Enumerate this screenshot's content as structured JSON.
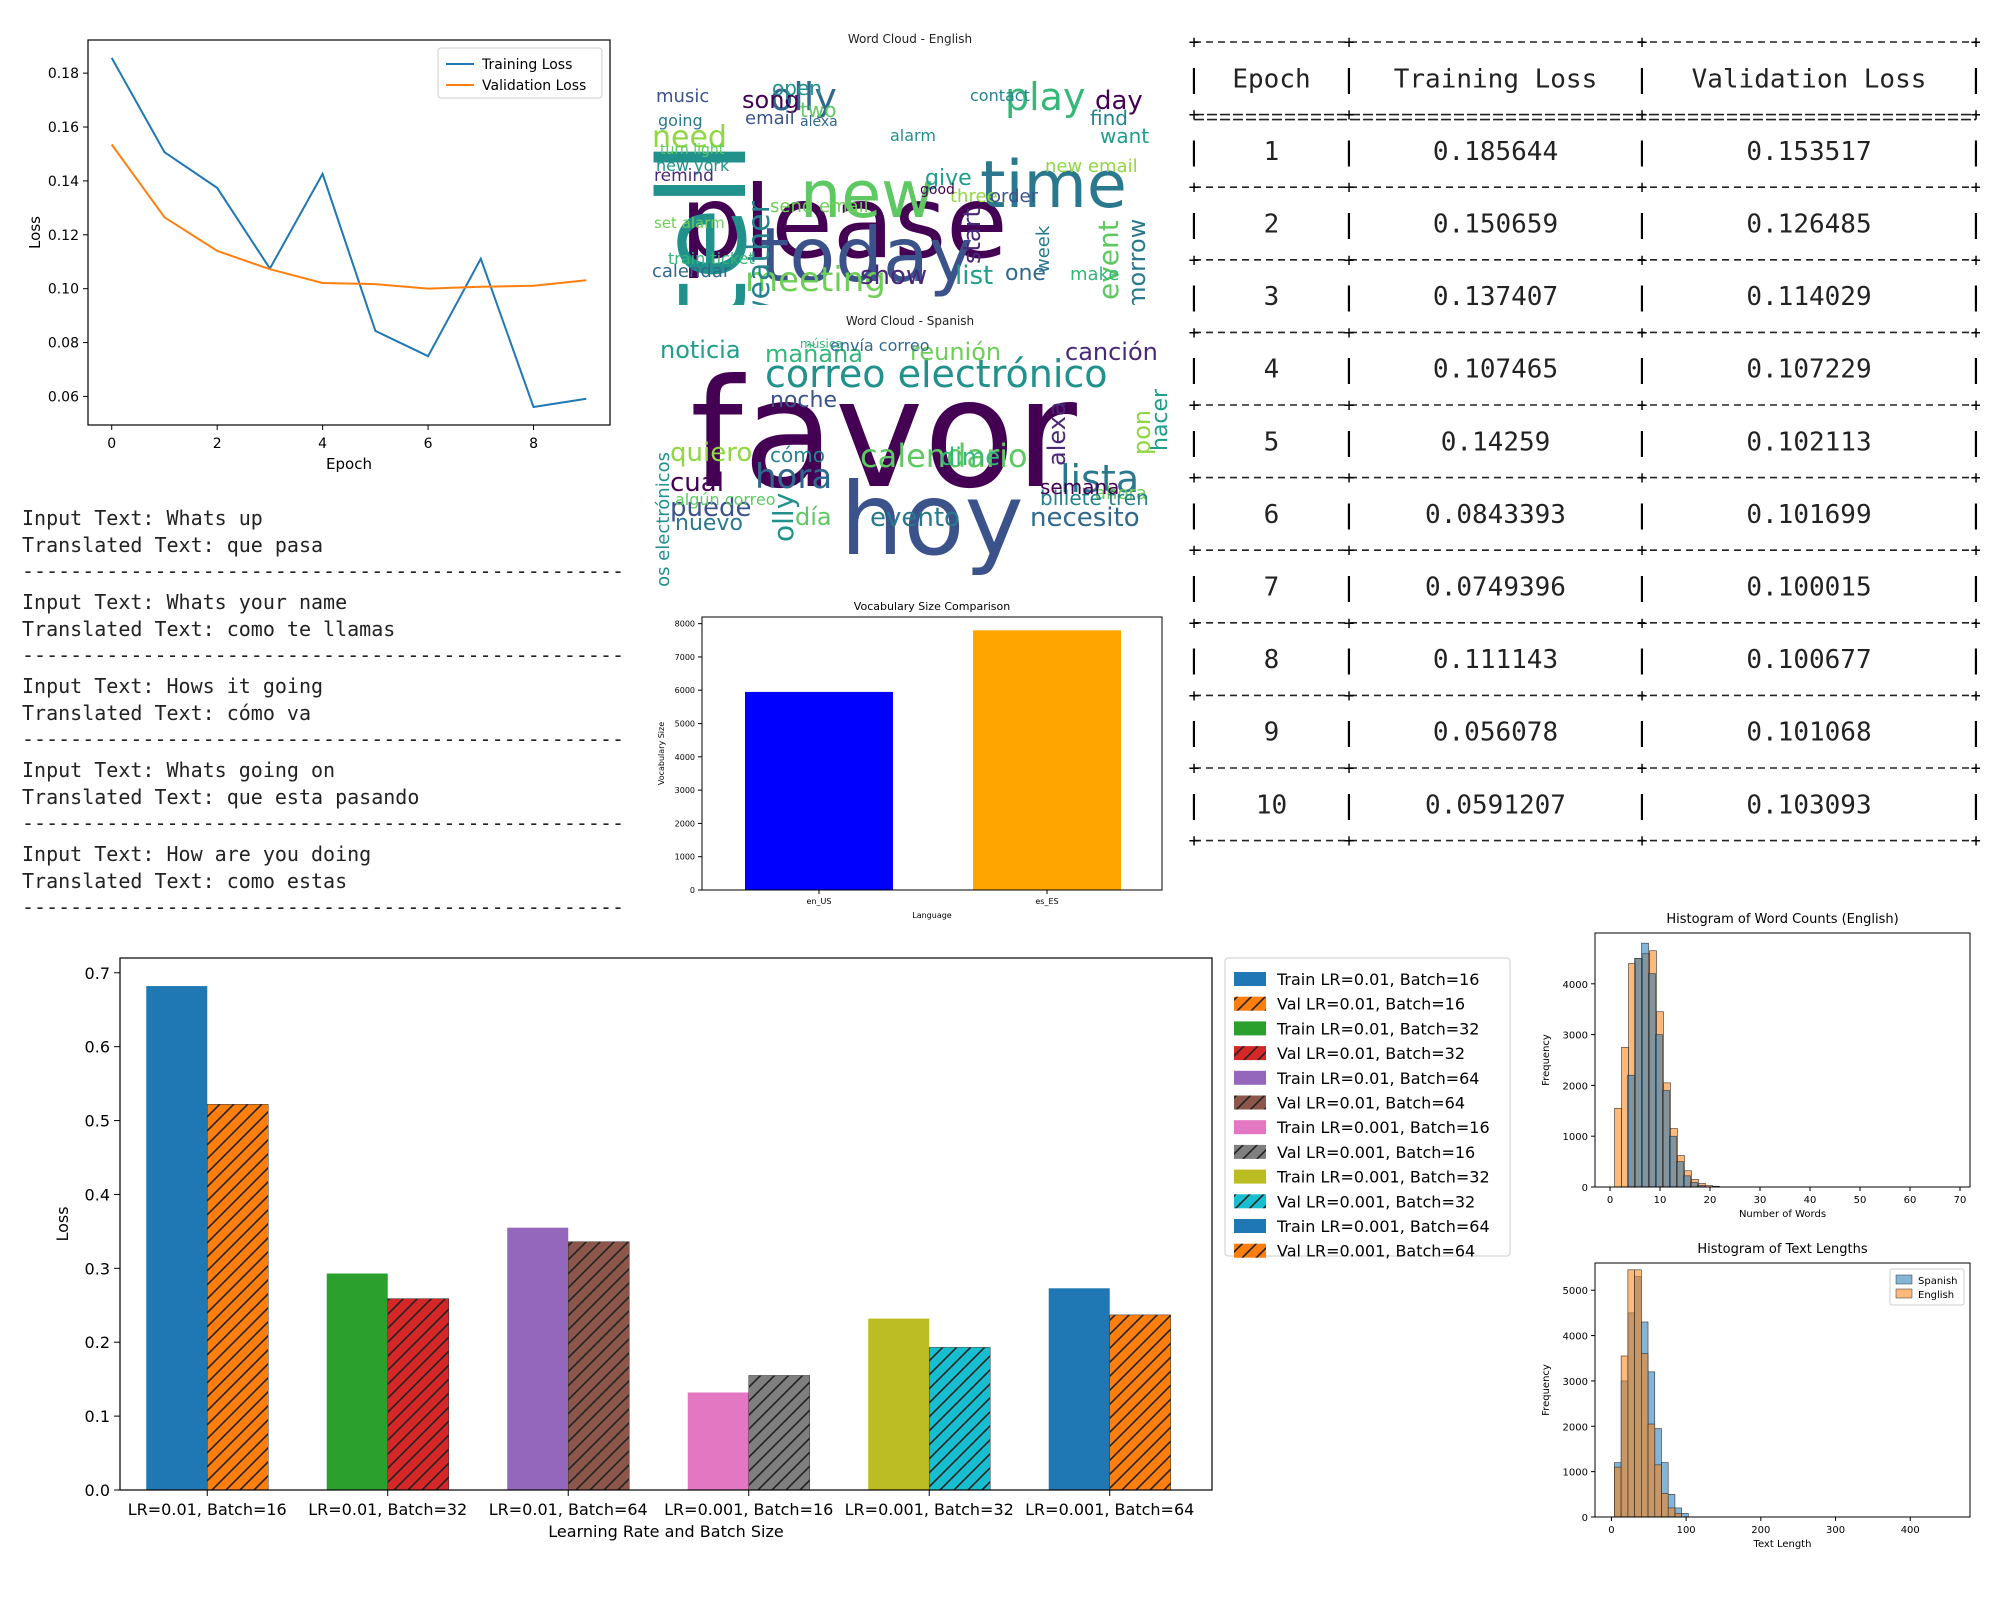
{
  "loss_chart": {
    "xlabel": "Epoch",
    "ylabel": "Loss",
    "legend": [
      "Training Loss",
      "Validation Loss"
    ],
    "x_ticks": [
      "0",
      "2",
      "4",
      "6",
      "8"
    ],
    "y_ticks": [
      "0.06",
      "0.08",
      "0.10",
      "0.12",
      "0.14",
      "0.16",
      "0.18"
    ]
  },
  "samples": [
    {
      "input": "Input Text: Whats up",
      "translated": "Translated Text: que pasa"
    },
    {
      "input": "Input Text: Whats your name",
      "translated": "Translated Text: como te llamas"
    },
    {
      "input": "Input Text: Hows it going",
      "translated": "Translated Text: cómo va"
    },
    {
      "input": "Input Text: Whats going on",
      "translated": "Translated Text: que esta pasando"
    },
    {
      "input": "Input Text: How are you doing",
      "translated": "Translated Text: como estas"
    }
  ],
  "separator": "------------------------------------------------------------",
  "wordcloud_en": {
    "title": "Word Cloud - English",
    "words": [
      "please",
      "today",
      "tell",
      "new",
      "time",
      "olly",
      "play",
      "meeting",
      "show",
      "list",
      "need",
      "weather",
      "song",
      "email",
      "alarm",
      "event",
      "tomorrow",
      "calendar",
      "train ticket",
      "set alarm",
      "remind",
      "want",
      "new email",
      "find",
      "day",
      "music",
      "open",
      "two",
      "week",
      "one",
      "make",
      "send email",
      "start",
      "give",
      "three",
      "contact",
      "good",
      "order",
      "new york",
      "turn light",
      "going",
      "alexa"
    ]
  },
  "wordcloud_es": {
    "title": "Word Cloud - Spanish",
    "words": [
      "favor",
      "hoy",
      "correo electrónico",
      "calendario",
      "lista",
      "hora",
      "mañana",
      "reunión",
      "canción",
      "noticia",
      "quiero",
      "cómo",
      "cuál",
      "puede",
      "olly",
      "día",
      "evento",
      "necesito",
      "dime",
      "ahora",
      "alexa",
      "hacer",
      "pon",
      "billete tren",
      "semana",
      "noche",
      "correos electrónicos",
      "algún correo",
      "nuevo",
      "envía correo",
      "música"
    ]
  },
  "vocab_chart": {
    "title": "Vocabulary Size Comparison",
    "xlabel": "Language",
    "ylabel": "Vocabulary Size",
    "y_ticks": [
      "0",
      "1000",
      "2000",
      "3000",
      "4000",
      "5000",
      "6000",
      "7000",
      "8000"
    ]
  },
  "loss_table": {
    "headers": [
      "Epoch",
      "Training Loss",
      "Validation Loss"
    ],
    "rows": [
      [
        "1",
        "0.185644",
        "0.153517"
      ],
      [
        "2",
        "0.150659",
        "0.126485"
      ],
      [
        "3",
        "0.137407",
        "0.114029"
      ],
      [
        "4",
        "0.107465",
        "0.107229"
      ],
      [
        "5",
        "0.14259",
        "0.102113"
      ],
      [
        "6",
        "0.0843393",
        "0.101699"
      ],
      [
        "7",
        "0.0749396",
        "0.100015"
      ],
      [
        "8",
        "0.111143",
        "0.100677"
      ],
      [
        "9",
        "0.056078",
        "0.101068"
      ],
      [
        "10",
        "0.0591207",
        "0.103093"
      ]
    ]
  },
  "grid_chart": {
    "xlabel": "Learning Rate and Batch Size",
    "ylabel": "Loss",
    "y_ticks": [
      "0.0",
      "0.1",
      "0.2",
      "0.3",
      "0.4",
      "0.5",
      "0.6",
      "0.7"
    ],
    "categories": [
      "LR=0.01, Batch=16",
      "LR=0.01, Batch=32",
      "LR=0.01, Batch=64",
      "LR=0.001, Batch=16",
      "LR=0.001, Batch=32",
      "LR=0.001, Batch=64"
    ],
    "legend": [
      "Train LR=0.01, Batch=16",
      "Val LR=0.01, Batch=16",
      "Train LR=0.01, Batch=32",
      "Val LR=0.01, Batch=32",
      "Train LR=0.01, Batch=64",
      "Val LR=0.01, Batch=64",
      "Train LR=0.001, Batch=16",
      "Val LR=0.001, Batch=16",
      "Train LR=0.001, Batch=32",
      "Val LR=0.001, Batch=32",
      "Train LR=0.001, Batch=64",
      "Val LR=0.001, Batch=64"
    ]
  },
  "hist_words": {
    "title": "Histogram of Word Counts (English)",
    "xlabel": "Number of Words",
    "ylabel": "Frequency",
    "x_ticks": [
      "0",
      "10",
      "20",
      "30",
      "40",
      "50",
      "60",
      "70"
    ],
    "y_ticks": [
      "0",
      "1000",
      "2000",
      "3000",
      "4000"
    ]
  },
  "hist_len": {
    "title": "Histogram of Text Lengths",
    "xlabel": "Text Length",
    "ylabel": "Frequency",
    "legend": [
      "Spanish",
      "English"
    ],
    "x_ticks": [
      "0",
      "100",
      "200",
      "300",
      "400"
    ],
    "y_ticks": [
      "0",
      "1000",
      "2000",
      "3000",
      "4000",
      "5000"
    ]
  },
  "chart_data": [
    {
      "type": "line",
      "x": [
        0,
        1,
        2,
        3,
        4,
        5,
        6,
        7,
        8,
        9
      ],
      "series": [
        {
          "name": "Training Loss",
          "color": "#1f77b4",
          "values": [
            0.185644,
            0.150659,
            0.137407,
            0.107465,
            0.14259,
            0.0843393,
            0.0749396,
            0.111143,
            0.056078,
            0.0591207
          ]
        },
        {
          "name": "Validation Loss",
          "color": "#ff7f0e",
          "values": [
            0.153517,
            0.126485,
            0.114029,
            0.107229,
            0.102113,
            0.101699,
            0.100015,
            0.100677,
            0.101068,
            0.103093
          ]
        }
      ],
      "xlabel": "Epoch",
      "ylabel": "Loss",
      "xlim": [
        -0.45,
        9.45
      ],
      "ylim": [
        0.0494,
        0.1923
      ],
      "legend_position": "top-right"
    },
    {
      "type": "bar",
      "title": "Vocabulary Size Comparison",
      "categories": [
        "en_US",
        "es_ES"
      ],
      "values": [
        5950,
        7800
      ],
      "colors": [
        "#0000ff",
        "#ffa500"
      ],
      "xlabel": "Language",
      "ylabel": "Vocabulary Size",
      "ylim": [
        0,
        8200
      ]
    },
    {
      "type": "bar",
      "categories": [
        "LR=0.01, Batch=16",
        "LR=0.01, Batch=32",
        "LR=0.01, Batch=64",
        "LR=0.001, Batch=16",
        "LR=0.001, Batch=32",
        "LR=0.001, Batch=64"
      ],
      "series": [
        {
          "name": "Train",
          "values": [
            0.682,
            0.293,
            0.355,
            0.132,
            0.232,
            0.273
          ],
          "colors": [
            "#1f77b4",
            "#2ca02c",
            "#9467bd",
            "#e377c2",
            "#bcbd22",
            "#1f77b4"
          ]
        },
        {
          "name": "Val",
          "values": [
            0.522,
            0.259,
            0.336,
            0.155,
            0.193,
            0.237
          ],
          "colors": [
            "#ff7f0e",
            "#d62728",
            "#8c564b",
            "#7f7f7f",
            "#17becf",
            "#ff7f0e"
          ],
          "hatch": "diagonal"
        }
      ],
      "xlabel": "Learning Rate and Batch Size",
      "ylabel": "Loss",
      "ylim": [
        0,
        0.72
      ],
      "legend_position": "outside-right"
    },
    {
      "type": "bar",
      "title": "Histogram of Word Counts (English)",
      "xlabel": "Number of Words",
      "ylabel": "Frequency",
      "bin_width": 1.4,
      "series": [
        {
          "name": "English",
          "color": "#ff7f0e",
          "bins": [
            [
              0.9,
              1550
            ],
            [
              2.3,
              2750
            ],
            [
              3.7,
              4400
            ],
            [
              5.1,
              4500
            ],
            [
              6.5,
              4600
            ],
            [
              7.9,
              4650
            ],
            [
              9.3,
              3450
            ],
            [
              10.7,
              2050
            ],
            [
              12.1,
              1150
            ],
            [
              13.5,
              620
            ],
            [
              14.9,
              320
            ],
            [
              16.3,
              150
            ],
            [
              17.7,
              70
            ],
            [
              19.1,
              30
            ],
            [
              20.5,
              15
            ]
          ]
        },
        {
          "name": "Spanish",
          "color": "#1f77b4",
          "bins": [
            [
              3.5,
              2200
            ],
            [
              4.9,
              4500
            ],
            [
              6.3,
              4800
            ],
            [
              7.7,
              4200
            ],
            [
              9.1,
              3000
            ],
            [
              10.5,
              1900
            ],
            [
              11.9,
              1000
            ],
            [
              13.3,
              500
            ],
            [
              14.7,
              220
            ],
            [
              16.1,
              90
            ],
            [
              17.5,
              30
            ]
          ]
        }
      ],
      "xlim": [
        -3,
        72
      ],
      "ylim": [
        0,
        5000
      ]
    },
    {
      "type": "bar",
      "title": "Histogram of Text Lengths",
      "xlabel": "Text Length",
      "ylabel": "Frequency",
      "bin_width": 9,
      "legend_position": "top-right",
      "series": [
        {
          "name": "Spanish",
          "color": "#1f77b4",
          "bins": [
            [
              4,
              1200
            ],
            [
              13,
              3000
            ],
            [
              22,
              4500
            ],
            [
              31,
              5300
            ],
            [
              40,
              4300
            ],
            [
              49,
              3200
            ],
            [
              58,
              1950
            ],
            [
              67,
              1200
            ],
            [
              76,
              500
            ],
            [
              85,
              200
            ],
            [
              94,
              80
            ]
          ]
        },
        {
          "name": "English",
          "color": "#ff7f0e",
          "bins": [
            [
              4,
              1100
            ],
            [
              13,
              3550
            ],
            [
              22,
              5450
            ],
            [
              31,
              5450
            ],
            [
              40,
              3600
            ],
            [
              49,
              2050
            ],
            [
              58,
              1150
            ],
            [
              67,
              520
            ],
            [
              76,
              200
            ],
            [
              85,
              80
            ]
          ]
        }
      ],
      "xlim": [
        -22,
        480
      ],
      "ylim": [
        0,
        5600
      ]
    }
  ]
}
